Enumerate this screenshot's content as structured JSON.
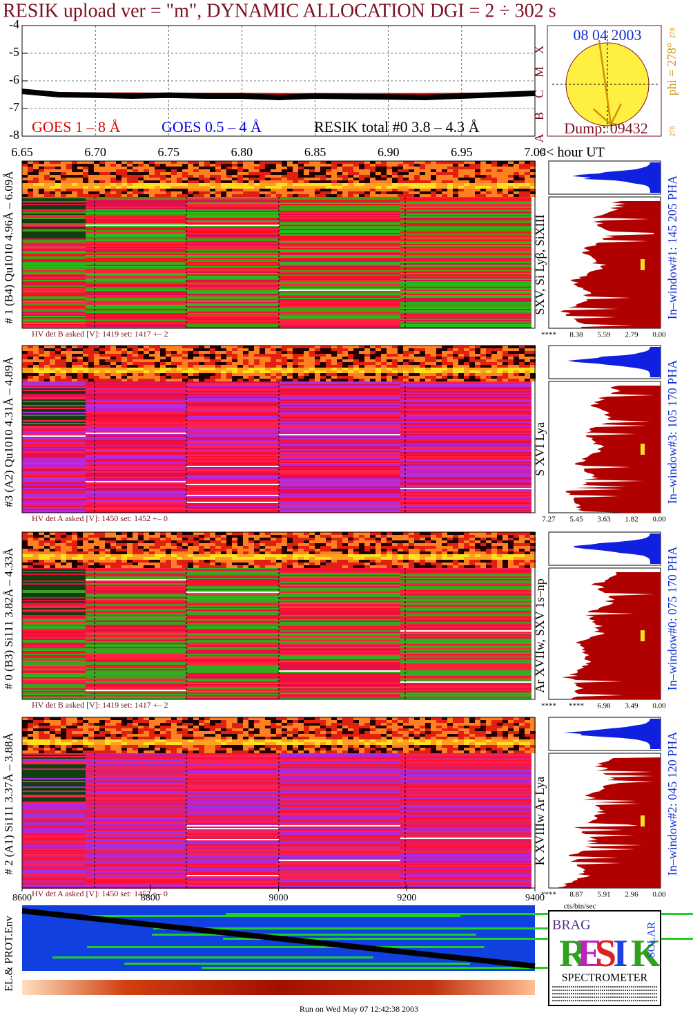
{
  "title": "RESIK upload ver = \"m\", DYNAMIC ALLOCATION  DGI =   2 ÷ 302 s",
  "chart_data": [
    {
      "type": "line",
      "x": [
        6.65,
        6.675,
        6.7,
        6.725,
        6.75,
        6.775,
        6.8,
        6.825,
        6.85,
        6.875,
        6.9,
        6.925,
        6.95,
        6.975,
        7.0
      ],
      "series": [
        {
          "name": "GOES 1 – 8 Å",
          "color": "#e00000",
          "values": [
            -6.42,
            -6.45,
            -6.47,
            -6.47,
            -6.48,
            -6.48,
            -6.48,
            -6.49,
            -6.49,
            -6.49,
            -6.49,
            -6.49,
            -6.48,
            -6.47,
            -6.46
          ]
        },
        {
          "name": "GOES 0.5 – 4 Å",
          "color": "#0000e0",
          "values": [
            null,
            null,
            null,
            null,
            null,
            null,
            null,
            null,
            null,
            null,
            null,
            null,
            null,
            null,
            null
          ]
        },
        {
          "name": "RESIK total #0  3.8 – 4.3 Å",
          "color": "#000000",
          "values": [
            -6.38,
            -6.5,
            -6.52,
            -6.55,
            -6.52,
            -6.55,
            -6.55,
            -6.6,
            -6.55,
            -6.57,
            -6.58,
            -6.6,
            -6.55,
            -6.5,
            -6.45
          ]
        }
      ],
      "xlim": [
        6.65,
        7.0
      ],
      "xticks": [
        6.65,
        {
          "value": 6.7,
          "label": "6.70"
        },
        6.75,
        {
          "value": 6.8,
          "label": "6.80"
        },
        6.85,
        {
          "value": 6.9,
          "label": "6.90"
        },
        6.95,
        {
          "value": 7.0,
          "label": "7.00"
        }
      ],
      "xlabel": "<< hour UT",
      "ylim": [
        -8,
        -4
      ],
      "yticks": [
        -8,
        -7,
        -6,
        -5,
        -4
      ],
      "grid": true
    }
  ],
  "sun": {
    "date": "08 04 2003",
    "dump": "Dump: 09432",
    "phi": "phi = 278°",
    "phi_small": "278",
    "corner": "278",
    "classes": [
      "A",
      "B",
      "C",
      "M",
      "X"
    ]
  },
  "panels": [
    {
      "label": "# 1 (B4) Qu1010 4.96Å – 6.09Å",
      "lines": "SXV, Si Lyβ, SiXIII",
      "window": "In–window#1:  145 205 PHA",
      "hv": "HV det B asked [V]:  1419 set:  1417 +–    2",
      "pha_ticks": [
        "****",
        "8.38",
        "5.59",
        "2.79",
        "0.00"
      ]
    },
    {
      "label": "#3 (A2) Qu1010  4.31Å – 4.89Å",
      "lines": "S XVI Lya",
      "window": "In–window#3:  105 170 PHA",
      "hv": "HV det A asked [V]:  1450 set:  1452 +–    0",
      "pha_ticks": [
        "7.27",
        "5.45",
        "3.63",
        "1.82",
        "0.00"
      ]
    },
    {
      "label": "# 0 (B3) Si111  3.82Å – 4.33Å",
      "lines": "Ar XVIIw,  SXV 1s–np",
      "window": "In–window#0:  075 170 PHA",
      "hv": "HV det B asked [V]:  1419 set:  1417 +–    2",
      "pha_ticks": [
        "****",
        "****",
        "6.98",
        "3.49",
        "0.00"
      ]
    },
    {
      "label": "# 2 (A1) Si111  3.37Å – 3.88Å",
      "lines": "K XVIIIw  Ar Lya",
      "window": "In–window#2:  045 120 PHA",
      "hv": "HV det A asked [V]:  1450 set:  1452 +–    0",
      "pha_ticks": [
        "****",
        "8.87",
        "5.91",
        "2.96",
        "0.00"
      ]
    }
  ],
  "bottom_axis": {
    "xlim": [
      8600,
      9400
    ],
    "xticks": [
      8600,
      8800,
      9000,
      9200,
      9400
    ],
    "label": "EL.& PROT.Env",
    "unit": "cts/bin/sec"
  },
  "logo": {
    "top": "BRAG",
    "letters": [
      "R",
      "E",
      "S",
      "I",
      "K"
    ],
    "side": "SOLAR",
    "name": "SPECTROMETER"
  },
  "footer": "Run on Wed May 07 12:42:38 2003"
}
